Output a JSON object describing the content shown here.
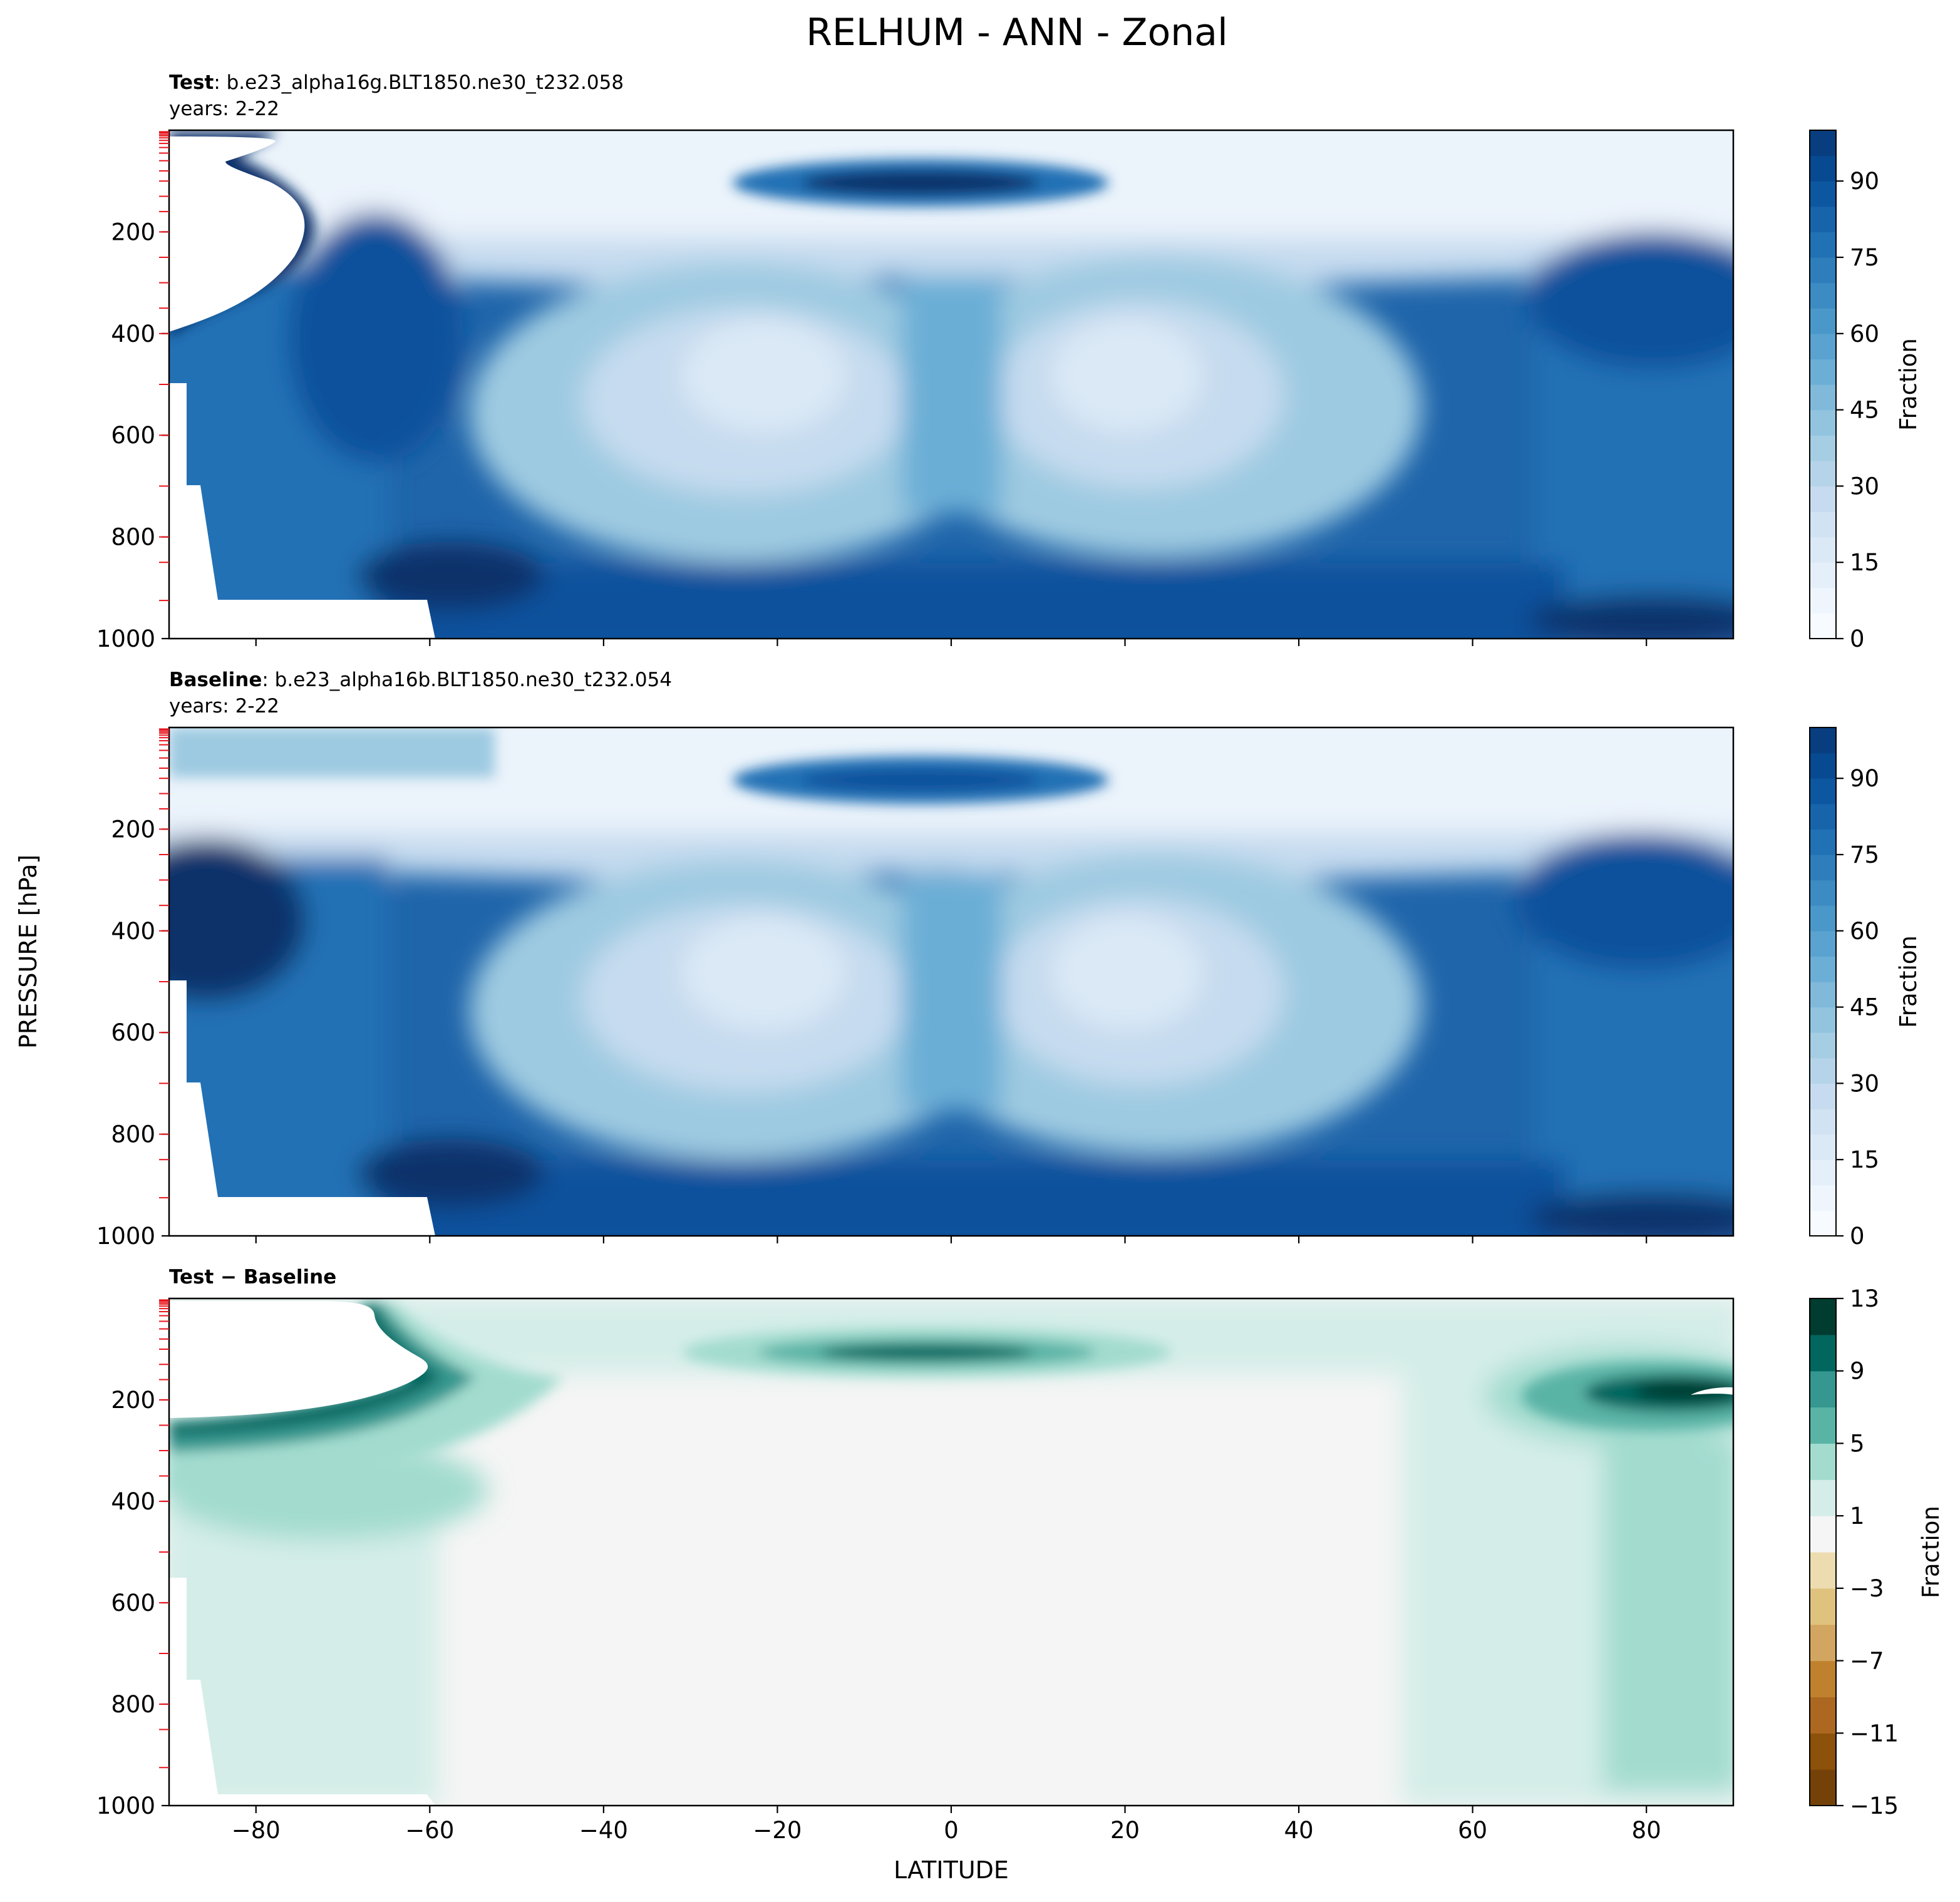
{
  "figure": {
    "title": "RELHUM - ANN - Zonal",
    "ylabel": "PRESSURE [hPa]",
    "xlabel": "LATITUDE"
  },
  "panels": [
    {
      "bold": "Test",
      "rest": ": b.e23_alpha16g.BLT1850.ne30_t232.058",
      "years": "years: 2-22"
    },
    {
      "bold": "Baseline",
      "rest": ": b.e23_alpha16b.BLT1850.ne30_t232.054",
      "years": "years: 2-22"
    },
    {
      "bold": "Test − Baseline",
      "rest": "",
      "years": ""
    }
  ],
  "chart_data": [
    {
      "type": "contour",
      "title": "Test : b.e23_alpha16g.BLT1850.ne30_t232.058",
      "subtitle": "years: 2-22",
      "xlim": [
        -90,
        90
      ],
      "ylim": [
        1000,
        0
      ],
      "xticks": [
        -80,
        -60,
        -40,
        -20,
        0,
        20,
        40,
        60,
        80
      ],
      "yticks": [
        200,
        400,
        600,
        800,
        1000
      ],
      "colorbar": {
        "label": "Fraction",
        "ticks": [
          0,
          15,
          30,
          45,
          60,
          75,
          90
        ],
        "range": [
          0,
          100
        ],
        "levels": 20
      },
      "colormap": "Blues",
      "features": [
        {
          "lat": -5,
          "pressure": 100,
          "value": 95
        },
        {
          "lat": -25,
          "pressure": 480,
          "value": 22
        },
        {
          "lat": 25,
          "pressure": 480,
          "value": 25
        },
        {
          "lat": 0,
          "pressure": 950,
          "value": 85
        },
        {
          "lat": -75,
          "pressure": 300,
          "value": 95
        },
        {
          "lat": 85,
          "pressure": 300,
          "value": 90
        }
      ]
    },
    {
      "type": "contour",
      "title": "Baseline : b.e23_alpha16b.BLT1850.ne30_t232.054",
      "subtitle": "years: 2-22",
      "xlim": [
        -90,
        90
      ],
      "ylim": [
        1000,
        0
      ],
      "xticks": [
        -80,
        -60,
        -40,
        -20,
        0,
        20,
        40,
        60,
        80
      ],
      "yticks": [
        200,
        400,
        600,
        800,
        1000
      ],
      "colorbar": {
        "label": "Fraction",
        "ticks": [
          0,
          15,
          30,
          45,
          60,
          75,
          90
        ],
        "range": [
          0,
          100
        ],
        "levels": 20
      },
      "colormap": "Blues",
      "features": [
        {
          "lat": -5,
          "pressure": 100,
          "value": 85
        },
        {
          "lat": -25,
          "pressure": 480,
          "value": 22
        },
        {
          "lat": 25,
          "pressure": 480,
          "value": 25
        },
        {
          "lat": 0,
          "pressure": 950,
          "value": 85
        },
        {
          "lat": -85,
          "pressure": 350,
          "value": 92
        },
        {
          "lat": 85,
          "pressure": 350,
          "value": 85
        }
      ]
    },
    {
      "type": "contour",
      "title": "Test − Baseline",
      "xlim": [
        -90,
        90
      ],
      "ylim": [
        1000,
        0
      ],
      "xticks": [
        -80,
        -60,
        -40,
        -20,
        0,
        20,
        40,
        60,
        80
      ],
      "yticks": [
        200,
        400,
        600,
        800,
        1000
      ],
      "colorbar": {
        "label": "Fraction",
        "ticks": [
          13,
          9,
          5,
          1,
          -3,
          -7,
          -11,
          -15
        ],
        "range": [
          -15,
          13
        ],
        "levels": 14
      },
      "colormap": "BrBG",
      "features": [
        {
          "lat": -5,
          "pressure": 100,
          "value": 11
        },
        {
          "lat": -60,
          "pressure": 200,
          "value": 9
        },
        {
          "lat": 80,
          "pressure": 200,
          "value": 12
        },
        {
          "lat": 85,
          "pressure": 700,
          "value": 3
        },
        {
          "lat": 0,
          "pressure": 600,
          "value": 0
        }
      ]
    }
  ]
}
